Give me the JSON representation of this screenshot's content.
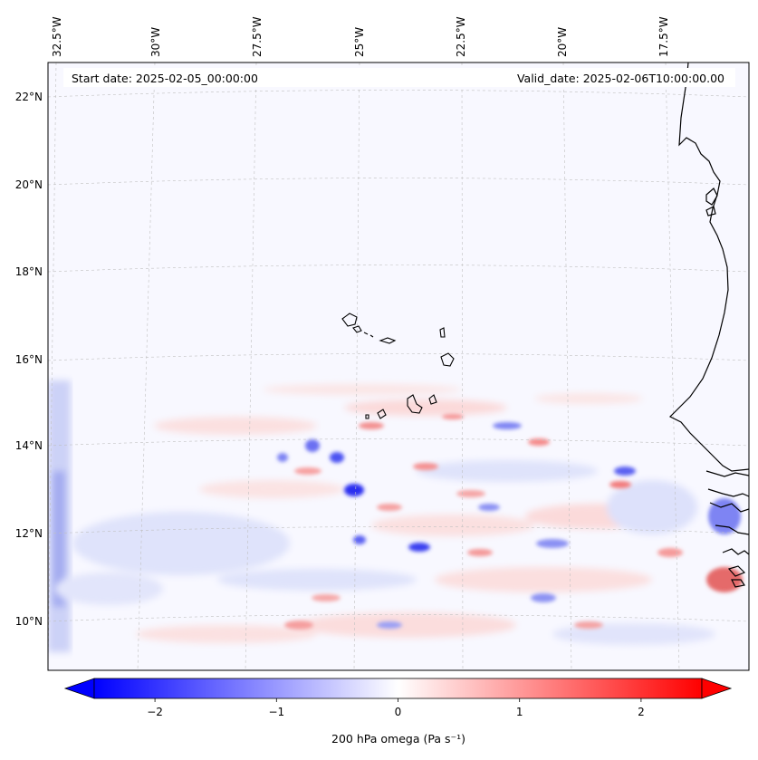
{
  "header": {
    "start_date": "Start date: 2025-02-05_00:00:00",
    "valid_date": "Valid_date: 2025-02-06T10:00:00.00"
  },
  "longitude_labels": [
    "32.5°W",
    "30°W",
    "27.5°W",
    "25°W",
    "22.5°W",
    "20°W",
    "17.5°W"
  ],
  "latitude_labels": [
    "22°N",
    "20°N",
    "18°N",
    "16°N",
    "14°N",
    "12°N",
    "10°N"
  ],
  "colorbar": {
    "tick_labels": [
      "−2",
      "−1",
      "0",
      "1",
      "2"
    ],
    "tick_values": [
      -2,
      -1,
      0,
      1,
      2
    ],
    "range": [
      -2.5,
      2.5
    ],
    "label": "200 hPa omega (Pa s⁻¹)",
    "low_color": "#0000ff",
    "mid_color": "#ffffff",
    "high_color": "#ff0000"
  },
  "colors": {
    "background_field": "#f8f8ff",
    "coastline": "#000000",
    "gridline": "#b0b0b0"
  }
}
